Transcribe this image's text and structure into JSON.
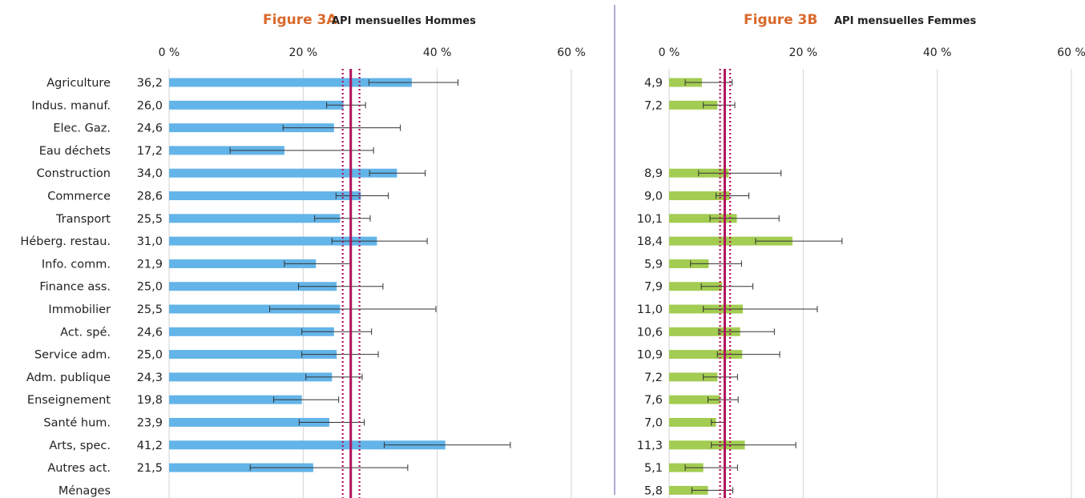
{
  "colors": {
    "men_bar": "#63b4e8",
    "women_bar": "#a3cc52",
    "mean_line": "#b0125c",
    "title_accent": "#d9692b",
    "grid": "#d3d3d3",
    "divider": "#5a5aa0",
    "error_bar": "#333333"
  },
  "chart_data": [
    {
      "type": "bar",
      "orientation": "horizontal",
      "title_prefix": "Figure 3A",
      "title": "API mensuelles Hommes",
      "xlim": [
        0,
        60
      ],
      "tick_labels": [
        "0 %",
        "20 %",
        "40 %",
        "60 %"
      ],
      "grid": true,
      "mean_line": {
        "value": 27.1,
        "ci_low": 25.9,
        "ci_high": 28.4
      },
      "categories": [
        "Agriculture",
        "Indus. manuf.",
        "Elec. Gaz.",
        "Eau déchets",
        "Construction",
        "Commerce",
        "Transport",
        "Héberg. restau.",
        "Info. comm.",
        "Finance ass.",
        "Immobilier",
        "Act. spé.",
        "Service adm.",
        "Adm. publique",
        "Enseignement",
        "Santé hum.",
        "Arts, spec.",
        "Autres act.",
        "Ménages"
      ],
      "value_labels": [
        "36,2",
        "26,0",
        "24,6",
        "17,2",
        "34,0",
        "28,6",
        "25,5",
        "31,0",
        "21,9",
        "25,0",
        "25,5",
        "24,6",
        "25,0",
        "24,3",
        "19,8",
        "23,9",
        "41,2",
        "21,5",
        ""
      ],
      "values": [
        36.2,
        26.0,
        24.6,
        17.2,
        34.0,
        28.6,
        25.5,
        31.0,
        21.9,
        25.0,
        25.5,
        24.6,
        25.0,
        24.3,
        19.8,
        23.9,
        41.2,
        21.5,
        null
      ],
      "error_low": [
        29.8,
        23.5,
        17.0,
        9.1,
        29.9,
        24.9,
        21.7,
        24.3,
        17.2,
        19.3,
        15.0,
        19.8,
        19.8,
        20.4,
        15.6,
        19.4,
        32.1,
        12.1,
        null
      ],
      "error_high": [
        43.1,
        29.3,
        34.5,
        30.5,
        38.2,
        32.7,
        30.0,
        38.5,
        27.1,
        31.9,
        39.8,
        30.2,
        31.2,
        28.8,
        25.3,
        29.1,
        50.9,
        35.6,
        null
      ]
    },
    {
      "type": "bar",
      "orientation": "horizontal",
      "title_prefix": "Figure 3B",
      "title": "API mensuelles Femmes",
      "xlim": [
        0,
        60
      ],
      "tick_labels": [
        "0 %",
        "20 %",
        "40 %",
        "60 %"
      ],
      "grid": true,
      "mean_line": {
        "value": 8.3,
        "ci_low": 7.6,
        "ci_high": 9.1
      },
      "categories": [
        "Agriculture",
        "Indus. manuf.",
        "Elec. Gaz.",
        "Eau déchets",
        "Construction",
        "Commerce",
        "Transport",
        "Héberg. restau.",
        "Info. comm.",
        "Finance ass.",
        "Immobilier",
        "Act. spé.",
        "Service adm.",
        "Adm. publique",
        "Enseignement",
        "Santé hum.",
        "Arts, spec.",
        "Autres act.",
        "Ménages"
      ],
      "value_labels": [
        "4,9",
        "7,2",
        "",
        "",
        "8,9",
        "9,0",
        "10,1",
        "18,4",
        "5,9",
        "7,9",
        "11,0",
        "10,6",
        "10,9",
        "7,2",
        "7,6",
        "7,0",
        "11,3",
        "5,1",
        "5,8"
      ],
      "values": [
        4.9,
        7.2,
        null,
        null,
        8.9,
        9.0,
        10.1,
        18.4,
        5.9,
        7.9,
        11.0,
        10.6,
        10.9,
        7.2,
        7.6,
        7.0,
        11.3,
        5.1,
        5.8
      ],
      "error_low": [
        2.4,
        5.1,
        null,
        null,
        4.4,
        7.0,
        6.1,
        12.9,
        3.2,
        4.8,
        5.1,
        7.4,
        7.2,
        5.1,
        5.8,
        6.3,
        6.3,
        2.4,
        3.4
      ],
      "error_high": [
        9.4,
        9.8,
        null,
        null,
        16.7,
        11.9,
        16.4,
        25.8,
        10.8,
        12.5,
        22.1,
        15.7,
        16.5,
        10.2,
        10.3,
        8.4,
        18.9,
        10.2,
        9.5
      ]
    }
  ]
}
